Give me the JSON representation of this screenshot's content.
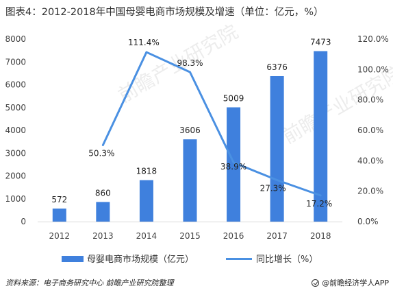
{
  "title": "图表4：2012-2018年中国母婴电商市场规模及增速（单位：亿元，%）",
  "footer": {
    "source": "资料来源：电子商务研究中心 前瞻产业研究院整理",
    "credit": "@前瞻经济学人APP"
  },
  "watermark": "前瞻产业研究院",
  "chart_data": {
    "type": "bar",
    "categories": [
      "2012",
      "2013",
      "2014",
      "2015",
      "2016",
      "2017",
      "2018"
    ],
    "series": [
      {
        "name": "母婴电商市场规模（亿元）",
        "type": "bar",
        "axis": "left",
        "values": [
          572,
          860,
          1818,
          3606,
          5009,
          6376,
          7473
        ],
        "labels": [
          "572",
          "860",
          "1818",
          "3606",
          "5009",
          "6376",
          "7473"
        ],
        "color": "#3f80dd"
      },
      {
        "name": "同比增长（%）",
        "type": "line",
        "axis": "right",
        "values": [
          null,
          50.3,
          111.4,
          98.3,
          38.9,
          27.3,
          17.2
        ],
        "labels": [
          "",
          "50.3%",
          "111.4%",
          "98.3%",
          "38.9%",
          "27.3%",
          "17.2%"
        ],
        "color": "#4a90e2"
      }
    ],
    "y_left": {
      "min": 0,
      "max": 8000,
      "step": 1000,
      "ticks": [
        "0",
        "1000",
        "2000",
        "3000",
        "4000",
        "5000",
        "6000",
        "7000",
        "8000"
      ]
    },
    "y_right": {
      "min": 0,
      "max": 120,
      "step": 20,
      "ticks": [
        "0.0%",
        "20.0%",
        "40.0%",
        "60.0%",
        "80.0%",
        "100.0%",
        "120.0%"
      ]
    },
    "grid": false,
    "legend": "bottom"
  }
}
